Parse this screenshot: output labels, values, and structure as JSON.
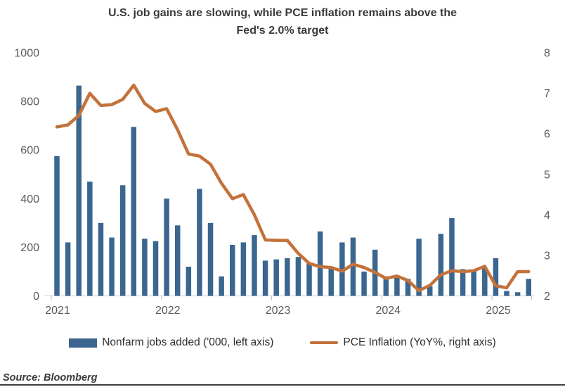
{
  "title": {
    "line1": "U.S. job gains are slowing, while PCE inflation remains above the",
    "line2": "Fed's 2.0% target"
  },
  "source_label": "Source: Bloomberg",
  "colors": {
    "bar": "#3A668F",
    "line": "#C4713A",
    "axis_text": "#595959",
    "title_text": "#3A3A3A",
    "axis_line": "#CFCFCF",
    "tick_mark": "#BFBFBF",
    "bottom_rule": "#3F3F3F"
  },
  "chart_data": {
    "type": "combo",
    "title": "U.S. job gains are slowing, while PCE inflation remains above the Fed's 2.0% target",
    "start_year": 2021,
    "points_per_year": 10,
    "grid": "off",
    "legend_position": "bottom",
    "x_axis": {
      "tick_labels": [
        "2021",
        "2022",
        "2023",
        "2024",
        "2025"
      ]
    },
    "left_axis": {
      "min": 0,
      "max": 1000,
      "step": 200,
      "ticks": [
        "0",
        "200",
        "400",
        "600",
        "800",
        "1000"
      ]
    },
    "right_axis": {
      "min": 2,
      "max": 8,
      "step": 1,
      "ticks": [
        "2",
        "3",
        "4",
        "5",
        "6",
        "7",
        "8"
      ]
    },
    "series": [
      {
        "name": "Nonfarm jobs added ('000, left axis)",
        "type": "bar",
        "axis": "left",
        "color": "#3A668F",
        "values": [
          575,
          220,
          865,
          470,
          300,
          240,
          455,
          695,
          235,
          225,
          400,
          290,
          120,
          440,
          300,
          80,
          210,
          220,
          250,
          145,
          150,
          155,
          160,
          135,
          265,
          115,
          220,
          240,
          100,
          190,
          80,
          75,
          70,
          235,
          40,
          255,
          320,
          110,
          105,
          115,
          155,
          20,
          15,
          70
        ]
      },
      {
        "name": "PCE Inflation (YoY%, right axis)",
        "type": "line",
        "axis": "right",
        "color": "#C4713A",
        "values": [
          6.17,
          6.22,
          6.45,
          7.0,
          6.7,
          6.72,
          6.85,
          7.2,
          6.75,
          6.55,
          6.62,
          6.1,
          5.5,
          5.45,
          5.25,
          4.78,
          4.4,
          4.5,
          4.0,
          3.38,
          3.37,
          3.37,
          3.05,
          2.8,
          2.72,
          2.7,
          2.61,
          2.78,
          2.7,
          2.58,
          2.43,
          2.49,
          2.38,
          2.13,
          2.26,
          2.52,
          2.62,
          2.6,
          2.62,
          2.73,
          2.25,
          2.2,
          2.6,
          2.6
        ]
      }
    ]
  }
}
